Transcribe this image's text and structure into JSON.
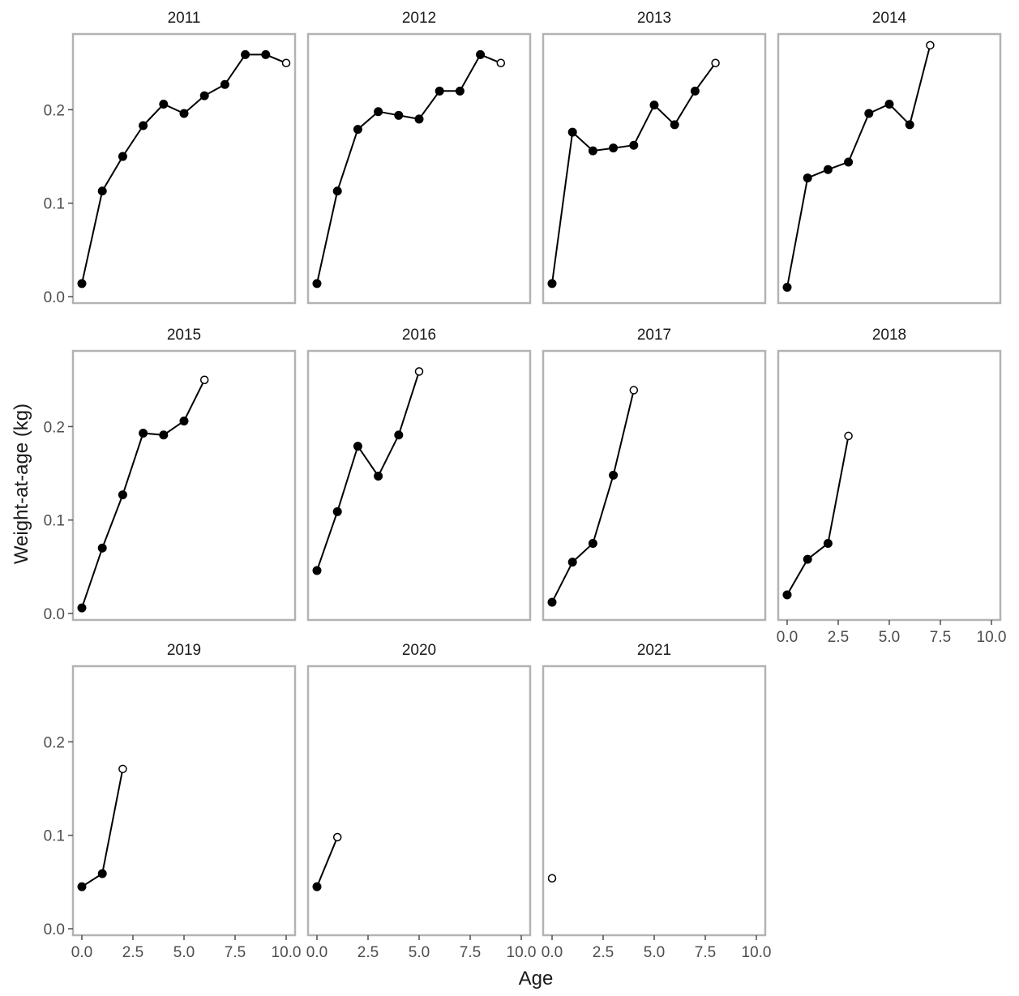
{
  "chart_data": {
    "type": "line",
    "xlabel": "Age",
    "ylabel": "Weight-at-age (kg)",
    "xlim": [
      0,
      10
    ],
    "ylim": [
      0,
      0.27
    ],
    "x_ticks": [
      0,
      2.5,
      5,
      7.5,
      10
    ],
    "x_tick_labels": [
      "0.0",
      "2.5",
      "5.0",
      "7.5",
      "10.0"
    ],
    "y_ticks": [
      0,
      0.1,
      0.2
    ],
    "y_tick_labels": [
      "0.0",
      "0.1",
      "0.2"
    ],
    "grid": false,
    "layout": "facet grid, 4 columns, 3 rows",
    "marker_note": "last point of each panel drawn as open circle",
    "panels": [
      {
        "title": "2011",
        "x": [
          0,
          1,
          2,
          3,
          4,
          5,
          6,
          7,
          8,
          9,
          10
        ],
        "y": [
          0.014,
          0.113,
          0.15,
          0.183,
          0.206,
          0.196,
          0.215,
          0.227,
          0.259,
          0.259,
          0.25
        ]
      },
      {
        "title": "2012",
        "x": [
          0,
          1,
          2,
          3,
          4,
          5,
          6,
          7,
          8,
          9
        ],
        "y": [
          0.014,
          0.113,
          0.179,
          0.198,
          0.194,
          0.19,
          0.22,
          0.22,
          0.259,
          0.25
        ]
      },
      {
        "title": "2013",
        "x": [
          0,
          1,
          2,
          3,
          4,
          5,
          6,
          7,
          8
        ],
        "y": [
          0.014,
          0.176,
          0.156,
          0.159,
          0.162,
          0.205,
          0.184,
          0.22,
          0.25
        ]
      },
      {
        "title": "2014",
        "x": [
          0,
          1,
          2,
          3,
          4,
          5,
          6,
          7
        ],
        "y": [
          0.01,
          0.127,
          0.136,
          0.144,
          0.196,
          0.206,
          0.184,
          0.269
        ]
      },
      {
        "title": "2015",
        "x": [
          0,
          1,
          2,
          3,
          4,
          5,
          6
        ],
        "y": [
          0.006,
          0.07,
          0.127,
          0.193,
          0.191,
          0.206,
          0.25
        ]
      },
      {
        "title": "2016",
        "x": [
          0,
          1,
          2,
          3,
          4,
          5
        ],
        "y": [
          0.046,
          0.109,
          0.179,
          0.147,
          0.191,
          0.259
        ]
      },
      {
        "title": "2017",
        "x": [
          0,
          1,
          2,
          3,
          4
        ],
        "y": [
          0.012,
          0.055,
          0.075,
          0.148,
          0.239
        ]
      },
      {
        "title": "2018",
        "x": [
          0,
          1,
          2,
          3
        ],
        "y": [
          0.02,
          0.058,
          0.075,
          0.19
        ]
      },
      {
        "title": "2019",
        "x": [
          0,
          1,
          2
        ],
        "y": [
          0.045,
          0.059,
          0.171
        ]
      },
      {
        "title": "2020",
        "x": [
          0,
          1
        ],
        "y": [
          0.045,
          0.098
        ]
      },
      {
        "title": "2021",
        "x": [
          0
        ],
        "y": [
          0.054
        ]
      }
    ]
  },
  "colors": {
    "panel_border": "#b3b3b3",
    "axis_tick": "#4d4d4d",
    "tick_label": "#4d4d4d",
    "strip_text": "#1a1a1a",
    "axis_title": "#1a1a1a",
    "series": "#000000"
  }
}
